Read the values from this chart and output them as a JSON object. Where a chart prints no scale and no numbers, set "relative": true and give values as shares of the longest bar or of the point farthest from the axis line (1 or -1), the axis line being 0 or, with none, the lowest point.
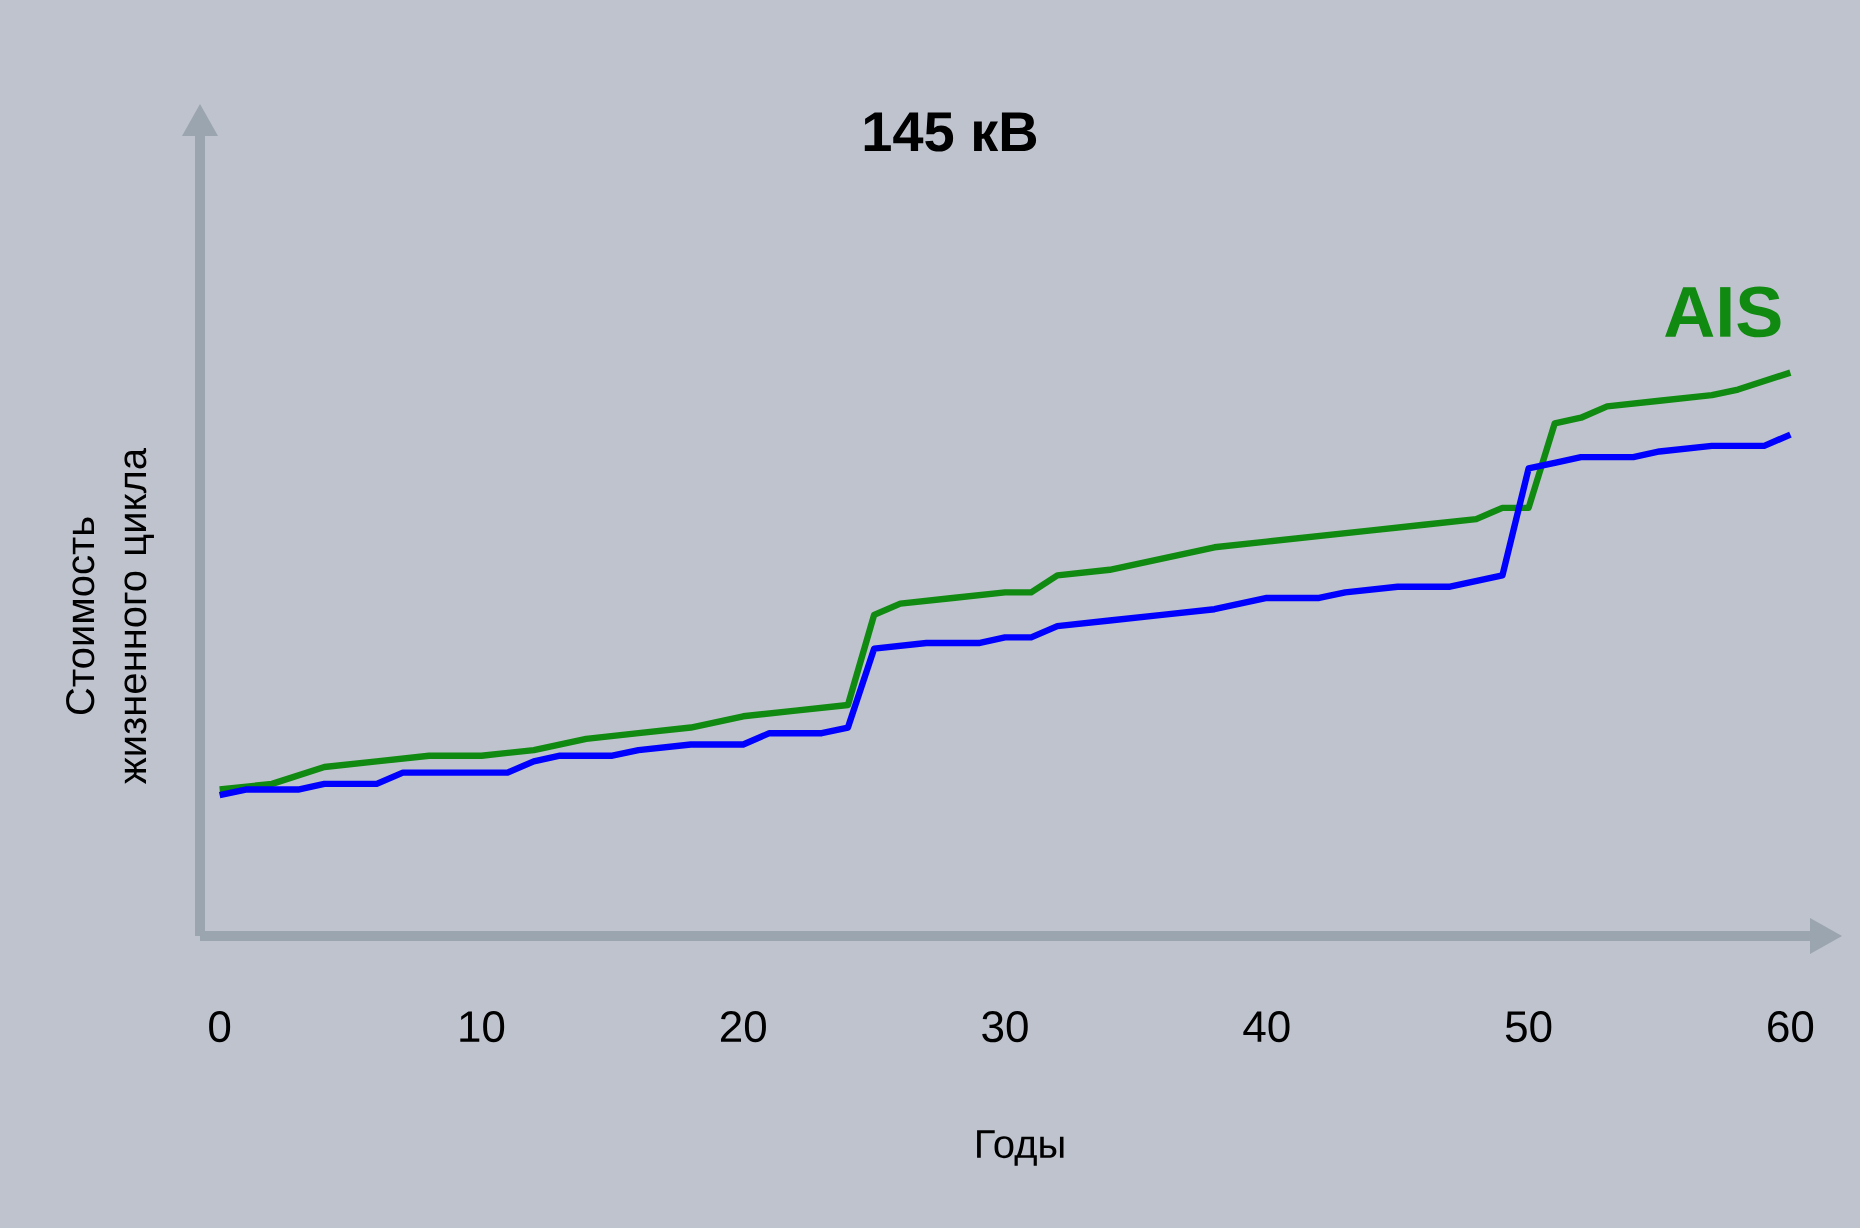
{
  "chart_data": {
    "type": "line",
    "title": "145 кВ",
    "xlabel": "Годы",
    "ylabel": "Стоимость жизненного цикла",
    "relative": true,
    "xlim": [
      -0.75,
      60.75
    ],
    "xticks": [
      0,
      10,
      20,
      30,
      40,
      50,
      60
    ],
    "legend": false,
    "grid": false,
    "series": [
      {
        "name": "AIS",
        "color": "#108a10",
        "x": [
          0,
          2,
          4,
          6,
          8,
          10,
          12,
          14,
          16,
          18,
          20,
          22,
          24,
          25,
          26,
          28,
          30,
          31,
          32,
          34,
          36,
          38,
          40,
          42,
          44,
          46,
          48,
          49,
          50,
          51,
          52,
          53,
          55,
          57,
          58,
          60
        ],
        "values": [
          0.26,
          0.27,
          0.3,
          0.31,
          0.32,
          0.32,
          0.33,
          0.35,
          0.36,
          0.37,
          0.39,
          0.4,
          0.41,
          0.57,
          0.59,
          0.6,
          0.61,
          0.61,
          0.64,
          0.65,
          0.67,
          0.69,
          0.7,
          0.71,
          0.72,
          0.73,
          0.74,
          0.76,
          0.76,
          0.91,
          0.92,
          0.94,
          0.95,
          0.96,
          0.97,
          1
        ]
      },
      {
        "color": "#0000ff",
        "x": [
          0,
          1,
          3,
          4,
          6,
          7,
          9,
          11,
          12,
          13,
          15,
          16,
          18,
          20,
          21,
          23,
          24,
          25,
          27,
          29,
          30,
          31,
          32,
          34,
          36,
          38,
          40,
          42,
          43,
          45,
          47,
          49,
          50,
          51,
          52,
          54,
          55,
          57,
          59,
          60
        ],
        "values": [
          0.25,
          0.26,
          0.26,
          0.27,
          0.27,
          0.29,
          0.29,
          0.29,
          0.31,
          0.32,
          0.32,
          0.33,
          0.34,
          0.34,
          0.36,
          0.36,
          0.37,
          0.51,
          0.52,
          0.52,
          0.53,
          0.53,
          0.55,
          0.56,
          0.57,
          0.58,
          0.6,
          0.6,
          0.61,
          0.62,
          0.62,
          0.64,
          0.83,
          0.84,
          0.85,
          0.85,
          0.86,
          0.87,
          0.87,
          0.89
        ]
      }
    ]
  }
}
